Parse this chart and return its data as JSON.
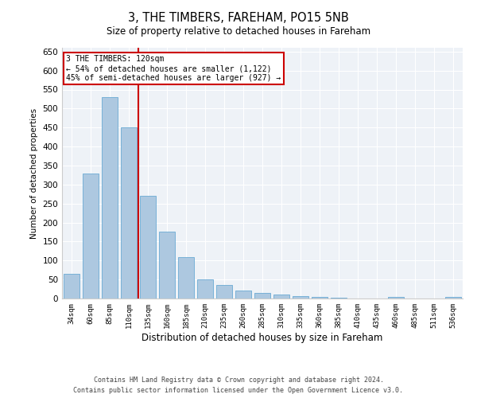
{
  "title": "3, THE TIMBERS, FAREHAM, PO15 5NB",
  "subtitle": "Size of property relative to detached houses in Fareham",
  "xlabel": "Distribution of detached houses by size in Fareham",
  "ylabel": "Number of detached properties",
  "categories": [
    "34sqm",
    "60sqm",
    "85sqm",
    "110sqm",
    "135sqm",
    "160sqm",
    "185sqm",
    "210sqm",
    "235sqm",
    "260sqm",
    "285sqm",
    "310sqm",
    "335sqm",
    "360sqm",
    "385sqm",
    "410sqm",
    "435sqm",
    "460sqm",
    "485sqm",
    "511sqm",
    "536sqm"
  ],
  "values": [
    65,
    330,
    530,
    450,
    270,
    175,
    110,
    50,
    35,
    20,
    15,
    10,
    7,
    5,
    2,
    1,
    0,
    5,
    1,
    0,
    5
  ],
  "bar_color": "#adc8e0",
  "bar_edge_color": "#6aaad4",
  "ylim": [
    0,
    660
  ],
  "yticks": [
    0,
    50,
    100,
    150,
    200,
    250,
    300,
    350,
    400,
    450,
    500,
    550,
    600,
    650
  ],
  "property_line_x": 3.5,
  "property_line_color": "#cc0000",
  "annotation_text": "3 THE TIMBERS: 120sqm\n← 54% of detached houses are smaller (1,122)\n45% of semi-detached houses are larger (927) →",
  "annotation_box_color": "#cc0000",
  "bg_color": "#eef2f7",
  "footer_line1": "Contains HM Land Registry data © Crown copyright and database right 2024.",
  "footer_line2": "Contains public sector information licensed under the Open Government Licence v3.0."
}
